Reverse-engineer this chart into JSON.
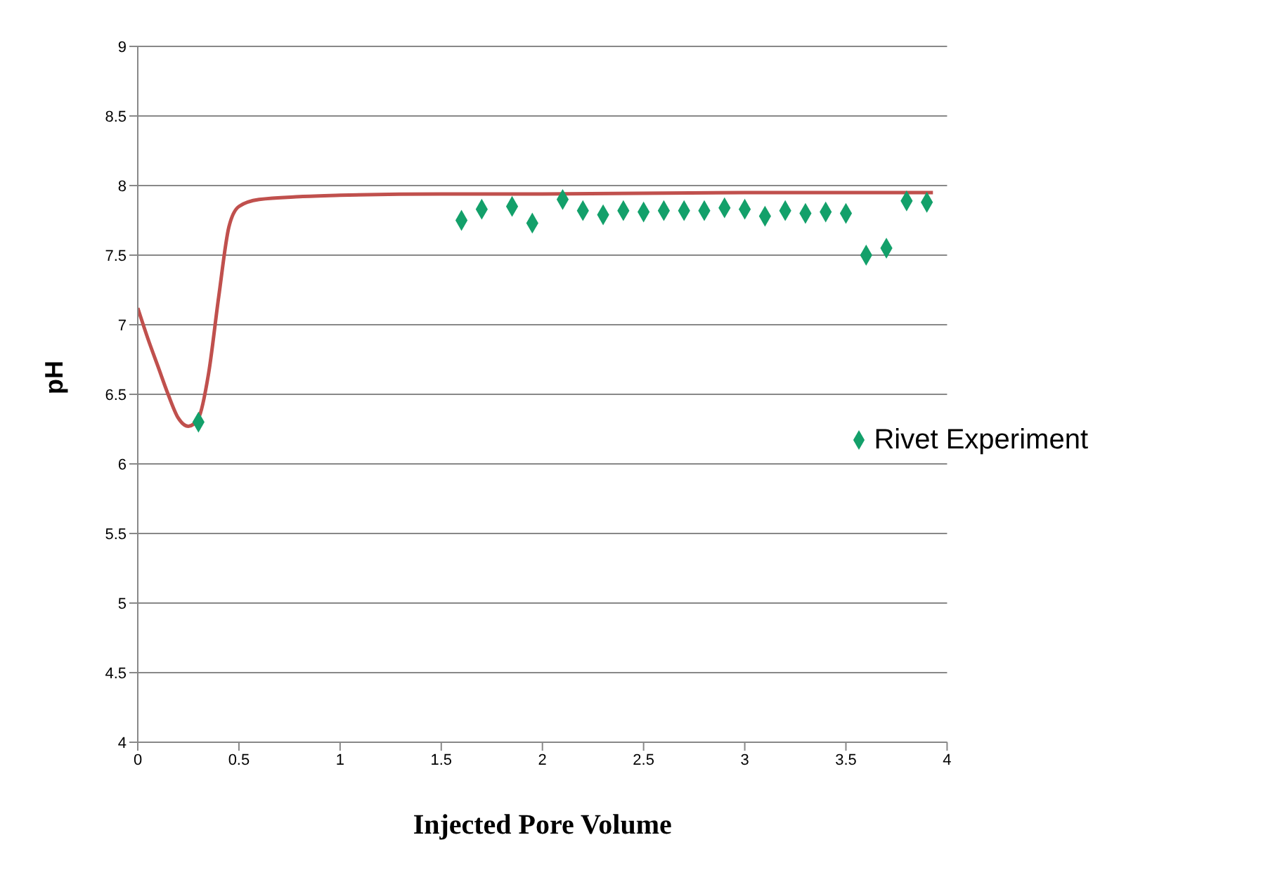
{
  "chart_data": {
    "type": "scatter",
    "xlabel": "Injected Pore Volume",
    "ylabel": "pH",
    "xlim": [
      0,
      4
    ],
    "xticks": [
      0,
      0.5,
      1,
      1.5,
      2,
      2.5,
      3,
      3.5,
      4
    ],
    "ylim": [
      4,
      9
    ],
    "yticks": [
      4,
      4.5,
      5,
      5.5,
      6,
      6.5,
      7,
      7.5,
      8,
      8.5,
      9
    ],
    "grid": "y",
    "legend": "right",
    "series": [
      {
        "name": "Rivet Experiment",
        "marker": "diamond",
        "color": "#13a06a",
        "x": [
          0.3,
          1.6,
          1.7,
          1.85,
          1.95,
          2.1,
          2.2,
          2.3,
          2.4,
          2.5,
          2.6,
          2.7,
          2.8,
          2.9,
          3.0,
          3.1,
          3.2,
          3.3,
          3.4,
          3.5,
          3.6,
          3.7,
          3.8,
          3.9
        ],
        "values": [
          6.3,
          7.75,
          7.83,
          7.85,
          7.73,
          7.9,
          7.82,
          7.79,
          7.82,
          7.81,
          7.82,
          7.82,
          7.82,
          7.84,
          7.83,
          7.78,
          7.82,
          7.8,
          7.81,
          7.8,
          7.5,
          7.55,
          7.89,
          7.88
        ]
      },
      {
        "type": "line",
        "marker": "none",
        "color": "#c0504d",
        "x": [
          0,
          0.05,
          0.1,
          0.15,
          0.2,
          0.25,
          0.3,
          0.35,
          0.4,
          0.45,
          0.5,
          0.6,
          0.8,
          1,
          1.5,
          2,
          3,
          3.93
        ],
        "values": [
          7.12,
          6.9,
          6.7,
          6.5,
          6.33,
          6.27,
          6.33,
          6.65,
          7.2,
          7.7,
          7.85,
          7.9,
          7.92,
          7.93,
          7.94,
          7.94,
          7.95,
          7.95
        ]
      }
    ]
  }
}
